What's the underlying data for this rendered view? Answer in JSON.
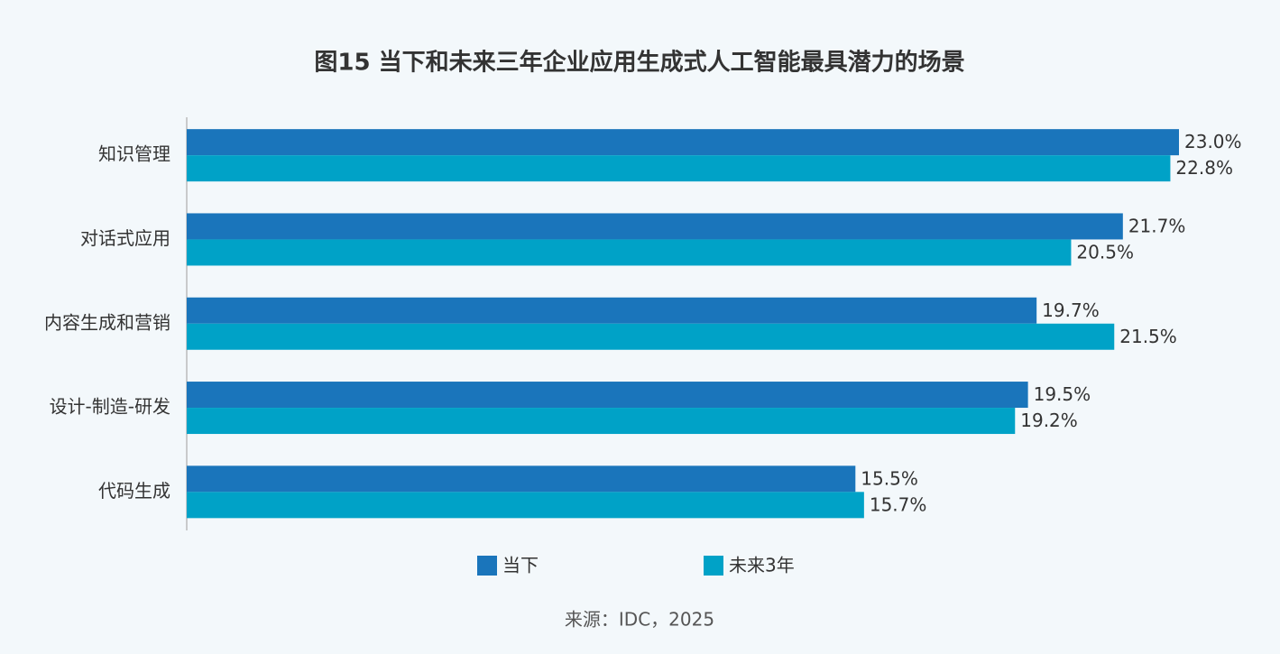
{
  "chart_data": {
    "type": "hbar",
    "title": "图15 当下和未来三年企业应用生成式人工智能最具潜力的场景",
    "categories": [
      "知识管理",
      "对话式应用",
      "内容生成和营销",
      "设计-制造-研发",
      "代码生成"
    ],
    "series": [
      {
        "name": "当下",
        "color": "#1a75bb",
        "values": [
          23.0,
          21.7,
          19.7,
          19.5,
          15.5
        ],
        "value_labels": [
          "23.0%",
          "21.7%",
          "19.7%",
          "19.5%",
          "15.5%"
        ]
      },
      {
        "name": "未来3年",
        "color": "#00a2c7",
        "values": [
          22.8,
          20.5,
          21.5,
          19.2,
          15.7
        ],
        "value_labels": [
          "22.8%",
          "20.5%",
          "21.5%",
          "19.2%",
          "15.7%"
        ]
      }
    ],
    "source": "来源：IDC，2025"
  }
}
